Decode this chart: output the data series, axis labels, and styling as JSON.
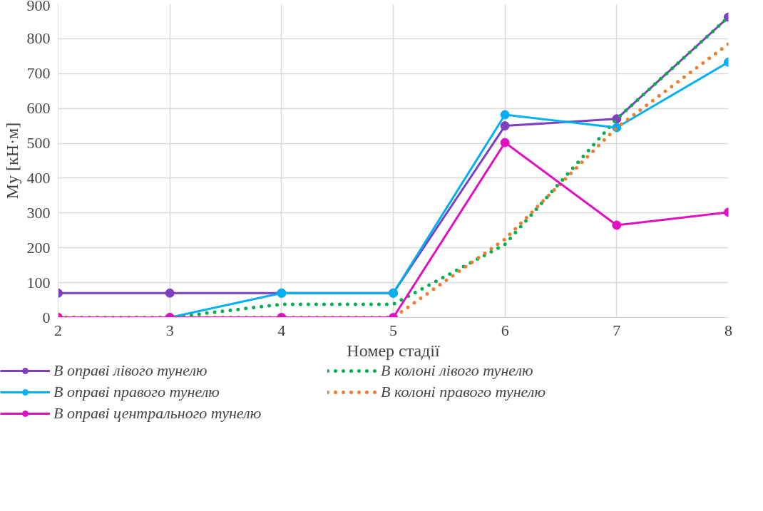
{
  "chart_data": {
    "type": "line",
    "xlabel": "Номер стадії",
    "ylabel": "My [кН·м]",
    "x": [
      2,
      3,
      4,
      5,
      6,
      7,
      8
    ],
    "xlim": [
      2,
      8
    ],
    "xticks": [
      2,
      3,
      4,
      5,
      6,
      7,
      8
    ],
    "ylim": [
      0,
      900
    ],
    "yticks": [
      0,
      100,
      200,
      300,
      400,
      500,
      600,
      700,
      800,
      900
    ],
    "grid": true,
    "legend": "bottom",
    "series": [
      {
        "name": "В оправі лівого тунелю",
        "color": "#7f3fbf",
        "marker": "circle",
        "line_style": "solid",
        "values": [
          70,
          70,
          70,
          70,
          550,
          570,
          862
        ]
      },
      {
        "name": "В колоні лівого тунелю",
        "color": "#00b050",
        "marker": "none",
        "line_style": "dotted",
        "values": [
          0,
          0,
          38,
          38,
          210,
          570,
          862
        ]
      },
      {
        "name": "В оправі правого тунелю",
        "color": "#00b0f0",
        "marker": "circle",
        "line_style": "solid",
        "values": [
          0,
          0,
          70,
          70,
          582,
          545,
          733
        ]
      },
      {
        "name": "В колоні правого тунелю",
        "color": "#ed7d31",
        "marker": "none",
        "line_style": "dotted",
        "values": [
          0,
          0,
          0,
          0,
          225,
          545,
          785
        ]
      },
      {
        "name": "В оправі центрального тунелю",
        "color": "#e010c0",
        "marker": "circle",
        "line_style": "solid",
        "values": [
          0,
          0,
          0,
          0,
          502,
          265,
          302
        ]
      }
    ]
  }
}
